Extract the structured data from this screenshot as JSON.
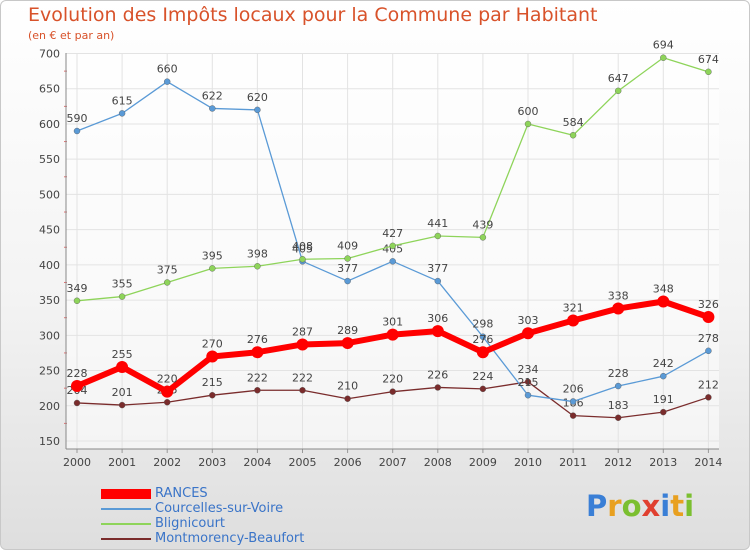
{
  "chart_data": {
    "type": "line",
    "title": "Evolution des Impôts locaux pour la Commune par Habitant",
    "subtitle": "(en € et par an)",
    "xlabel": "",
    "ylabel": "",
    "categories": [
      "2000",
      "2001",
      "2002",
      "2003",
      "2004",
      "2005",
      "2006",
      "2007",
      "2008",
      "2009",
      "2010",
      "2011",
      "2012",
      "2013",
      "2014"
    ],
    "ylim": [
      150,
      700
    ],
    "yticks": [
      150,
      200,
      250,
      300,
      350,
      400,
      450,
      500,
      550,
      600,
      650,
      700
    ],
    "grid": true,
    "legend_position": "bottom-left",
    "series": [
      {
        "name": "RANCES",
        "color": "#ff0000",
        "values": [
          228,
          255,
          220,
          270,
          276,
          287,
          289,
          301,
          306,
          276,
          303,
          321,
          338,
          348,
          326
        ]
      },
      {
        "name": "Courcelles-sur-Voire",
        "color": "#5a9ad6",
        "values": [
          590,
          615,
          660,
          622,
          620,
          405,
          377,
          405,
          377,
          298,
          215,
          206,
          228,
          242,
          278
        ]
      },
      {
        "name": "Blignicourt",
        "color": "#8ed45a",
        "values": [
          349,
          355,
          375,
          395,
          398,
          408,
          409,
          427,
          441,
          439,
          600,
          584,
          647,
          694,
          674
        ]
      },
      {
        "name": "Montmorency-Beaufort",
        "color": "#7a2c2c",
        "values": [
          204,
          201,
          205,
          215,
          222,
          222,
          210,
          220,
          226,
          224,
          234,
          186,
          183,
          191,
          212
        ]
      }
    ]
  },
  "logo": {
    "letters": [
      "P",
      "r",
      "o",
      "x",
      "i",
      "t",
      "i"
    ],
    "colors": [
      "#3a7fd6",
      "#e8a020",
      "#7bbf30",
      "#e04030",
      "#3a7fd6",
      "#e8a020",
      "#7bbf30"
    ]
  }
}
